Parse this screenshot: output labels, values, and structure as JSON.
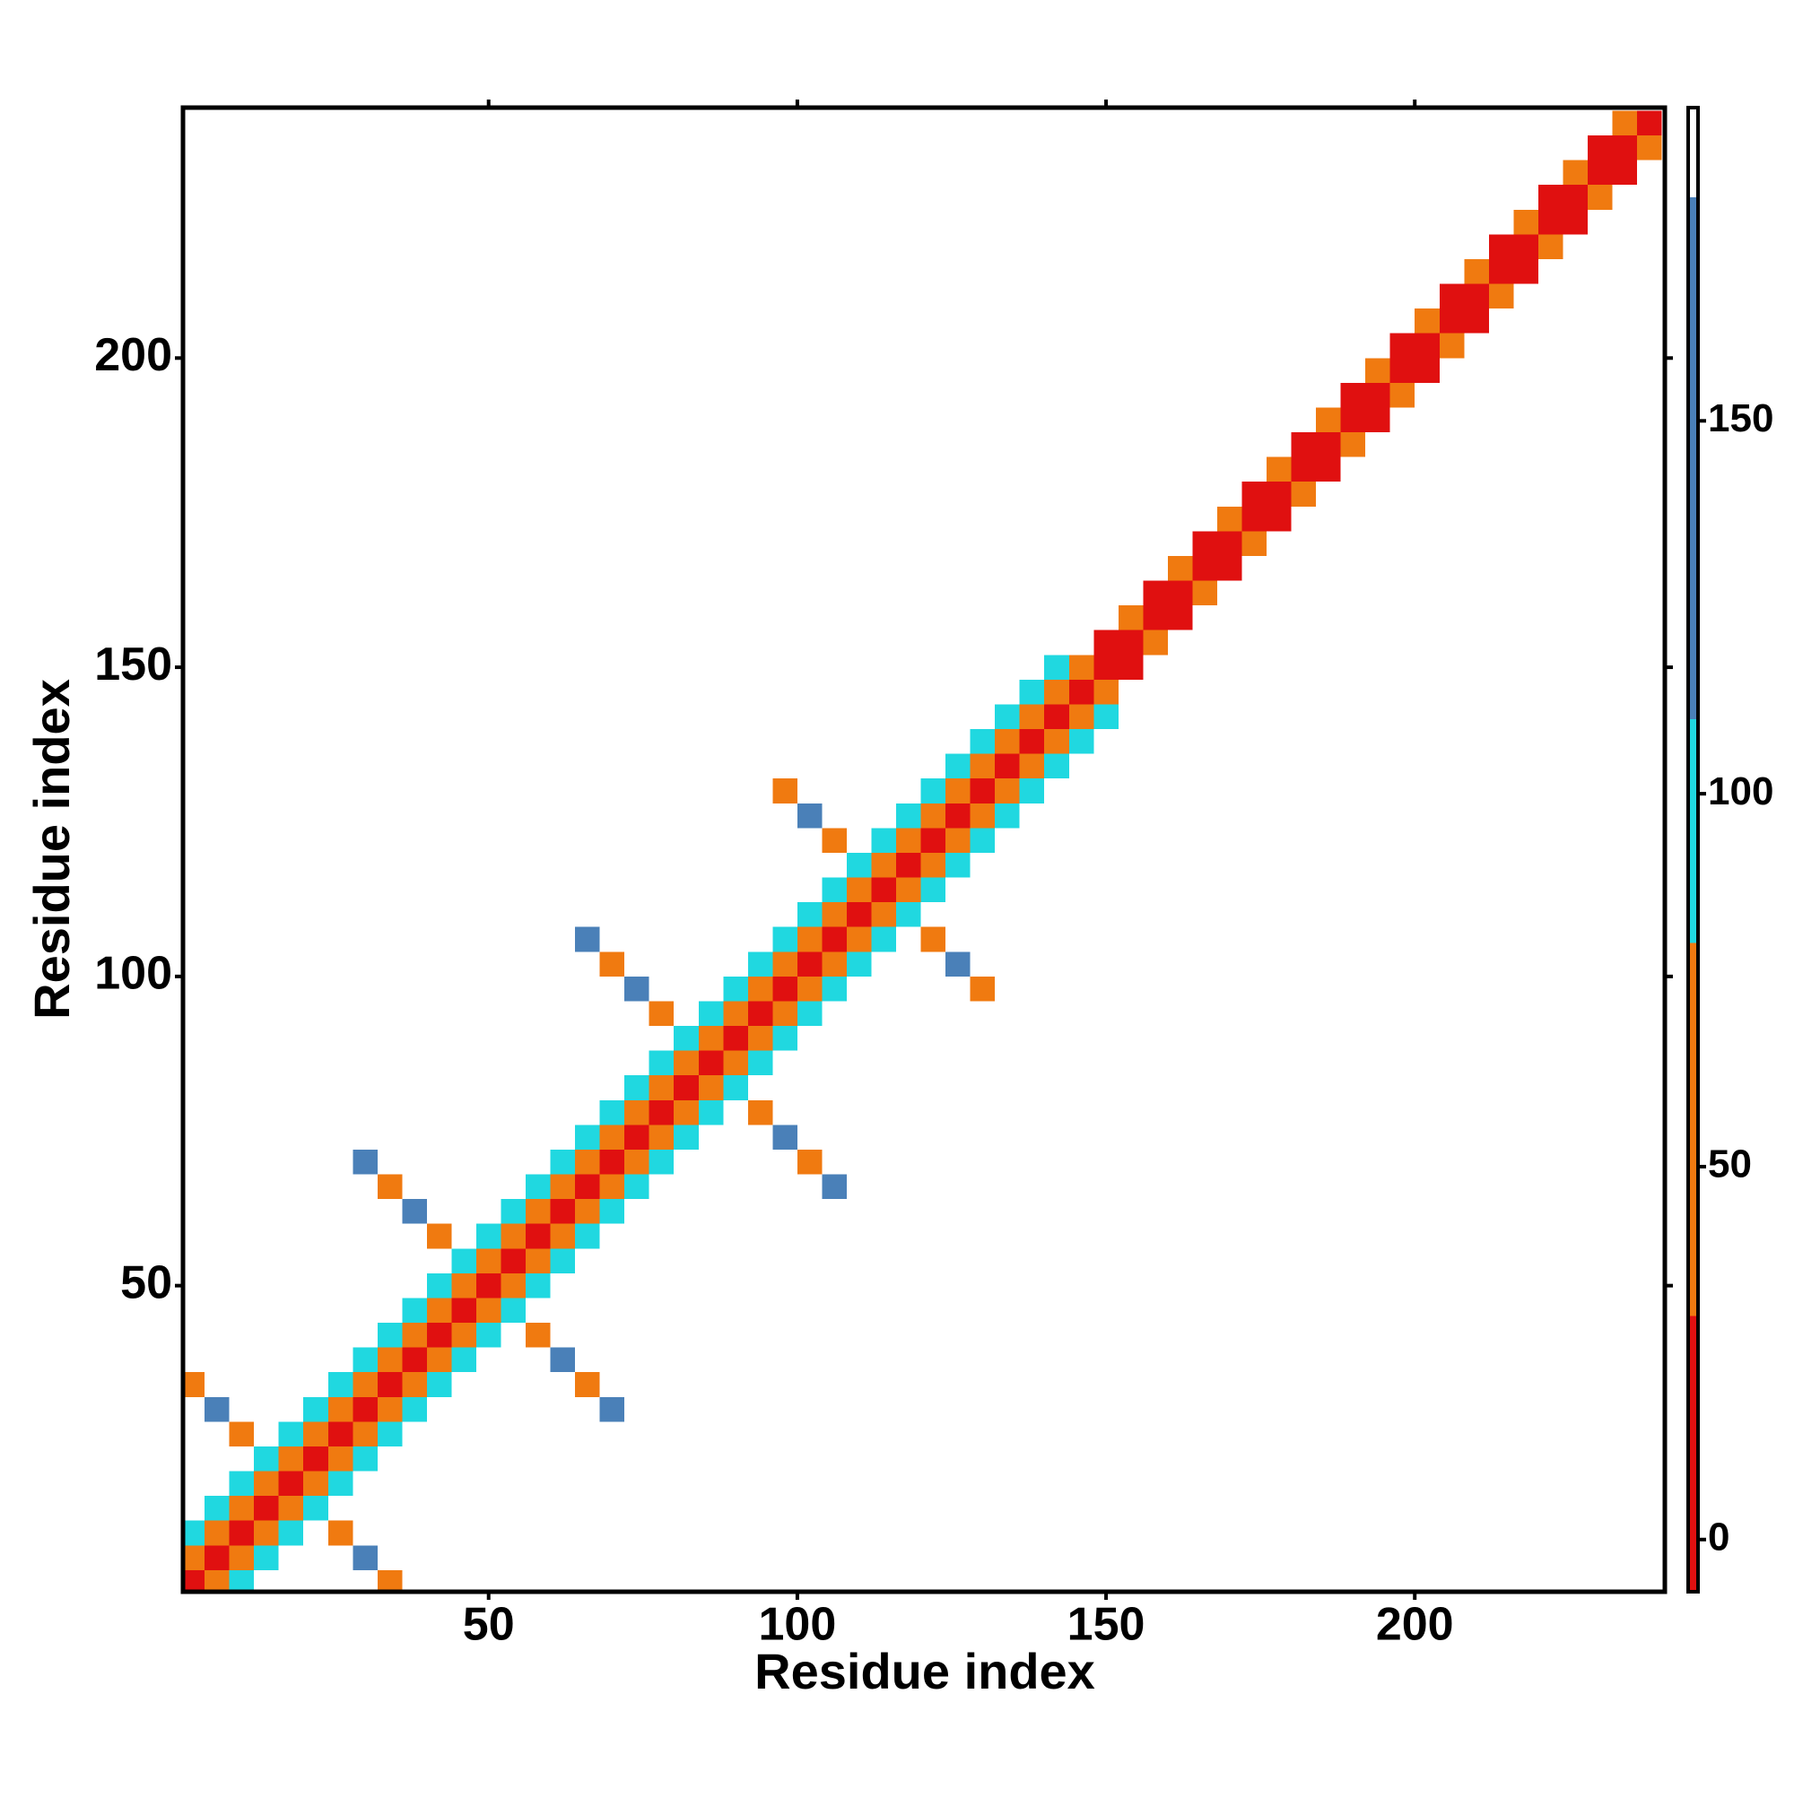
{
  "chart_data": {
    "type": "heatmap",
    "xlabel": "Residue index",
    "ylabel": "Residue index",
    "xlim": [
      0.5,
      240.5
    ],
    "ylim": [
      0.5,
      240.5
    ],
    "xticks": [
      50,
      100,
      150,
      200
    ],
    "yticks": [
      50,
      100,
      150,
      200
    ],
    "clim": [
      -7,
      192
    ],
    "cticks": [
      0,
      50,
      100,
      150
    ],
    "colorscale": [
      {
        "from": -7,
        "to": 30,
        "color": "#e01010"
      },
      {
        "from": 30,
        "to": 80,
        "color": "#f07a10"
      },
      {
        "from": 80,
        "to": 110,
        "color": "#20d8e0"
      },
      {
        "from": 110,
        "to": 180,
        "color": "#4a80b8"
      },
      {
        "from": 180,
        "to": 192,
        "color": "#ffffff"
      }
    ],
    "cells": [
      [
        2,
        2,
        10
      ],
      [
        6,
        6,
        10
      ],
      [
        10,
        10,
        10
      ],
      [
        14,
        14,
        10
      ],
      [
        18,
        18,
        10
      ],
      [
        22,
        22,
        10
      ],
      [
        26,
        26,
        10
      ],
      [
        30,
        30,
        10
      ],
      [
        34,
        34,
        10
      ],
      [
        38,
        38,
        10
      ],
      [
        42,
        42,
        10
      ],
      [
        46,
        46,
        10
      ],
      [
        50,
        50,
        10
      ],
      [
        54,
        54,
        10
      ],
      [
        58,
        58,
        10
      ],
      [
        62,
        62,
        10
      ],
      [
        66,
        66,
        10
      ],
      [
        70,
        70,
        10
      ],
      [
        74,
        74,
        10
      ],
      [
        78,
        78,
        10
      ],
      [
        82,
        82,
        10
      ],
      [
        86,
        86,
        10
      ],
      [
        90,
        90,
        10
      ],
      [
        94,
        94,
        10
      ],
      [
        98,
        98,
        10
      ],
      [
        102,
        102,
        10
      ],
      [
        106,
        106,
        10
      ],
      [
        110,
        110,
        10
      ],
      [
        114,
        114,
        10
      ],
      [
        118,
        118,
        10
      ],
      [
        122,
        122,
        10
      ],
      [
        126,
        126,
        10
      ],
      [
        130,
        130,
        10
      ],
      [
        134,
        134,
        10
      ],
      [
        138,
        138,
        10
      ],
      [
        142,
        142,
        10
      ],
      [
        146,
        146,
        10
      ],
      [
        150,
        150,
        10
      ],
      [
        154,
        154,
        10
      ],
      [
        158,
        158,
        10
      ],
      [
        162,
        162,
        10
      ],
      [
        166,
        166,
        10
      ],
      [
        170,
        170,
        10
      ],
      [
        174,
        174,
        10
      ],
      [
        178,
        178,
        10
      ],
      [
        182,
        182,
        10
      ],
      [
        186,
        186,
        10
      ],
      [
        190,
        190,
        10
      ],
      [
        194,
        194,
        10
      ],
      [
        198,
        198,
        10
      ],
      [
        202,
        202,
        10
      ],
      [
        206,
        206,
        10
      ],
      [
        210,
        210,
        10
      ],
      [
        214,
        214,
        10
      ],
      [
        218,
        218,
        10
      ],
      [
        222,
        222,
        10
      ],
      [
        226,
        226,
        10
      ],
      [
        230,
        230,
        10
      ],
      [
        234,
        234,
        10
      ],
      [
        238,
        238,
        10
      ],
      [
        2,
        6,
        55
      ],
      [
        6,
        2,
        55
      ],
      [
        6,
        10,
        55
      ],
      [
        10,
        6,
        55
      ],
      [
        10,
        14,
        55
      ],
      [
        14,
        10,
        55
      ],
      [
        14,
        18,
        55
      ],
      [
        18,
        14,
        55
      ],
      [
        18,
        22,
        55
      ],
      [
        22,
        18,
        55
      ],
      [
        22,
        26,
        55
      ],
      [
        26,
        22,
        55
      ],
      [
        26,
        30,
        55
      ],
      [
        30,
        26,
        55
      ],
      [
        30,
        34,
        55
      ],
      [
        34,
        30,
        55
      ],
      [
        34,
        38,
        55
      ],
      [
        38,
        34,
        55
      ],
      [
        38,
        42,
        55
      ],
      [
        42,
        38,
        55
      ],
      [
        42,
        46,
        55
      ],
      [
        46,
        42,
        55
      ],
      [
        46,
        50,
        55
      ],
      [
        50,
        46,
        55
      ],
      [
        50,
        54,
        55
      ],
      [
        54,
        50,
        55
      ],
      [
        54,
        58,
        55
      ],
      [
        58,
        54,
        55
      ],
      [
        58,
        62,
        55
      ],
      [
        62,
        58,
        55
      ],
      [
        62,
        66,
        55
      ],
      [
        66,
        62,
        55
      ],
      [
        66,
        70,
        55
      ],
      [
        70,
        66,
        55
      ],
      [
        70,
        74,
        55
      ],
      [
        74,
        70,
        55
      ],
      [
        74,
        78,
        55
      ],
      [
        78,
        74,
        55
      ],
      [
        78,
        82,
        55
      ],
      [
        82,
        78,
        55
      ],
      [
        82,
        86,
        55
      ],
      [
        86,
        82,
        55
      ],
      [
        86,
        90,
        55
      ],
      [
        90,
        86,
        55
      ],
      [
        90,
        94,
        55
      ],
      [
        94,
        90,
        55
      ],
      [
        94,
        98,
        55
      ],
      [
        98,
        94,
        55
      ],
      [
        98,
        102,
        55
      ],
      [
        102,
        98,
        55
      ],
      [
        102,
        106,
        55
      ],
      [
        106,
        102,
        55
      ],
      [
        106,
        110,
        55
      ],
      [
        110,
        106,
        55
      ],
      [
        110,
        114,
        55
      ],
      [
        114,
        110,
        55
      ],
      [
        114,
        118,
        55
      ],
      [
        118,
        114,
        55
      ],
      [
        118,
        122,
        55
      ],
      [
        122,
        118,
        55
      ],
      [
        122,
        126,
        55
      ],
      [
        126,
        122,
        55
      ],
      [
        126,
        130,
        55
      ],
      [
        130,
        126,
        55
      ],
      [
        130,
        134,
        55
      ],
      [
        134,
        130,
        55
      ],
      [
        134,
        138,
        55
      ],
      [
        138,
        134,
        55
      ],
      [
        138,
        142,
        55
      ],
      [
        142,
        138,
        55
      ],
      [
        142,
        146,
        55
      ],
      [
        146,
        142,
        55
      ],
      [
        146,
        150,
        55
      ],
      [
        150,
        146,
        55
      ],
      [
        150,
        154,
        20
      ],
      [
        154,
        150,
        20
      ],
      [
        154,
        158,
        55
      ],
      [
        158,
        154,
        55
      ],
      [
        158,
        162,
        20
      ],
      [
        162,
        158,
        20
      ],
      [
        162,
        166,
        55
      ],
      [
        166,
        162,
        55
      ],
      [
        166,
        170,
        20
      ],
      [
        170,
        166,
        20
      ],
      [
        170,
        174,
        55
      ],
      [
        174,
        170,
        55
      ],
      [
        174,
        178,
        20
      ],
      [
        178,
        174,
        20
      ],
      [
        178,
        182,
        55
      ],
      [
        182,
        178,
        55
      ],
      [
        182,
        186,
        20
      ],
      [
        186,
        182,
        20
      ],
      [
        186,
        190,
        55
      ],
      [
        190,
        186,
        55
      ],
      [
        190,
        194,
        20
      ],
      [
        194,
        190,
        20
      ],
      [
        194,
        198,
        55
      ],
      [
        198,
        194,
        55
      ],
      [
        198,
        202,
        20
      ],
      [
        202,
        198,
        20
      ],
      [
        202,
        206,
        55
      ],
      [
        206,
        202,
        55
      ],
      [
        206,
        210,
        20
      ],
      [
        210,
        206,
        20
      ],
      [
        210,
        214,
        55
      ],
      [
        214,
        210,
        55
      ],
      [
        214,
        218,
        20
      ],
      [
        218,
        214,
        20
      ],
      [
        218,
        222,
        55
      ],
      [
        222,
        218,
        55
      ],
      [
        222,
        226,
        20
      ],
      [
        226,
        222,
        20
      ],
      [
        226,
        230,
        55
      ],
      [
        230,
        226,
        55
      ],
      [
        230,
        234,
        20
      ],
      [
        234,
        230,
        20
      ],
      [
        234,
        238,
        55
      ],
      [
        238,
        234,
        55
      ],
      [
        2,
        10,
        95
      ],
      [
        10,
        2,
        95
      ],
      [
        6,
        14,
        95
      ],
      [
        14,
        6,
        95
      ],
      [
        10,
        18,
        95
      ],
      [
        18,
        10,
        95
      ],
      [
        14,
        22,
        95
      ],
      [
        22,
        14,
        95
      ],
      [
        18,
        26,
        95
      ],
      [
        26,
        18,
        95
      ],
      [
        22,
        30,
        95
      ],
      [
        30,
        22,
        95
      ],
      [
        26,
        34,
        95
      ],
      [
        34,
        26,
        95
      ],
      [
        30,
        38,
        95
      ],
      [
        38,
        30,
        95
      ],
      [
        34,
        42,
        95
      ],
      [
        42,
        34,
        95
      ],
      [
        38,
        46,
        95
      ],
      [
        46,
        38,
        95
      ],
      [
        42,
        50,
        95
      ],
      [
        50,
        42,
        95
      ],
      [
        46,
        54,
        95
      ],
      [
        54,
        46,
        95
      ],
      [
        50,
        58,
        95
      ],
      [
        58,
        50,
        95
      ],
      [
        54,
        62,
        95
      ],
      [
        62,
        54,
        95
      ],
      [
        58,
        66,
        95
      ],
      [
        66,
        58,
        95
      ],
      [
        62,
        70,
        95
      ],
      [
        70,
        62,
        95
      ],
      [
        66,
        74,
        95
      ],
      [
        74,
        66,
        95
      ],
      [
        70,
        78,
        95
      ],
      [
        78,
        70,
        95
      ],
      [
        74,
        82,
        95
      ],
      [
        82,
        74,
        95
      ],
      [
        78,
        86,
        95
      ],
      [
        86,
        78,
        95
      ],
      [
        82,
        90,
        95
      ],
      [
        90,
        82,
        95
      ],
      [
        86,
        94,
        95
      ],
      [
        94,
        86,
        95
      ],
      [
        90,
        98,
        95
      ],
      [
        98,
        90,
        95
      ],
      [
        94,
        102,
        95
      ],
      [
        102,
        94,
        95
      ],
      [
        98,
        106,
        95
      ],
      [
        106,
        98,
        95
      ],
      [
        102,
        110,
        95
      ],
      [
        110,
        102,
        95
      ],
      [
        106,
        114,
        95
      ],
      [
        114,
        106,
        95
      ],
      [
        110,
        118,
        95
      ],
      [
        118,
        110,
        95
      ],
      [
        114,
        122,
        95
      ],
      [
        122,
        114,
        95
      ],
      [
        118,
        126,
        95
      ],
      [
        126,
        118,
        95
      ],
      [
        122,
        130,
        95
      ],
      [
        130,
        122,
        95
      ],
      [
        126,
        134,
        95
      ],
      [
        134,
        126,
        95
      ],
      [
        130,
        138,
        95
      ],
      [
        138,
        130,
        95
      ],
      [
        134,
        142,
        95
      ],
      [
        142,
        134,
        95
      ],
      [
        138,
        146,
        95
      ],
      [
        146,
        138,
        95
      ],
      [
        142,
        150,
        95
      ],
      [
        150,
        142,
        95
      ],
      [
        10,
        26,
        60
      ],
      [
        26,
        10,
        60
      ],
      [
        6,
        30,
        120
      ],
      [
        30,
        6,
        120
      ],
      [
        2,
        34,
        60
      ],
      [
        34,
        2,
        60
      ],
      [
        42,
        58,
        60
      ],
      [
        58,
        42,
        60
      ],
      [
        38,
        62,
        120
      ],
      [
        62,
        38,
        120
      ],
      [
        34,
        66,
        60
      ],
      [
        66,
        34,
        60
      ],
      [
        30,
        70,
        120
      ],
      [
        70,
        30,
        120
      ],
      [
        78,
        94,
        60
      ],
      [
        94,
        78,
        60
      ],
      [
        74,
        98,
        120
      ],
      [
        98,
        74,
        120
      ],
      [
        70,
        102,
        60
      ],
      [
        102,
        70,
        60
      ],
      [
        66,
        106,
        120
      ],
      [
        106,
        66,
        120
      ],
      [
        106,
        122,
        60
      ],
      [
        122,
        106,
        60
      ],
      [
        102,
        126,
        120
      ],
      [
        126,
        102,
        120
      ],
      [
        98,
        130,
        60
      ],
      [
        130,
        98,
        60
      ]
    ]
  }
}
